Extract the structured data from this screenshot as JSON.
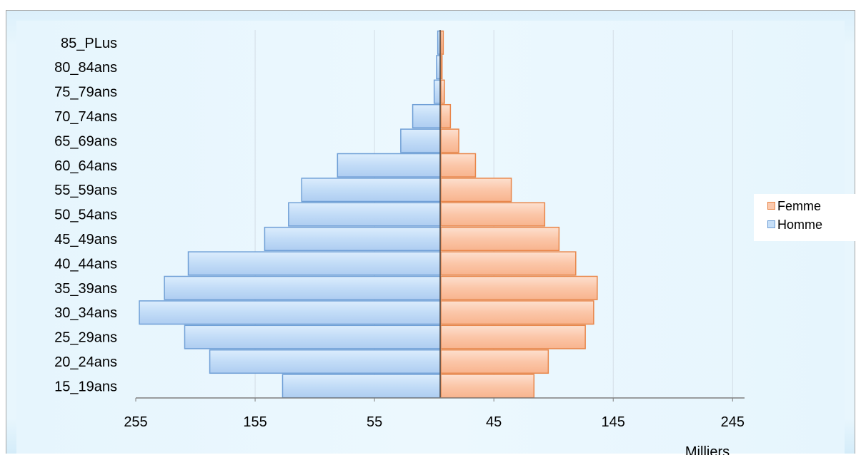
{
  "chart_data": {
    "type": "bar",
    "orientation": "horizontal",
    "categories": [
      "15_19ans",
      "20_24ans",
      "25_29ans",
      "30_34ans",
      "35_39ans",
      "40_44ans",
      "45_49ans",
      "50_54ans",
      "55_59ans",
      "60_64ans",
      "65_69ans",
      "70_74ans",
      "75_79ans",
      "80_84ans",
      "85_PLus"
    ],
    "series": [
      {
        "name": "Femme",
        "values": [
          78,
          90,
          121,
          128,
          131,
          113,
          99,
          87,
          59,
          29,
          15,
          8,
          3,
          1,
          2
        ]
      },
      {
        "name": "Homme",
        "values": [
          132,
          193,
          214,
          252,
          231,
          211,
          147,
          127,
          116,
          86,
          33,
          23,
          5,
          3,
          2
        ]
      }
    ],
    "xlim": [
      -255,
      255
    ],
    "xticks": [
      -255,
      -155,
      -55,
      45,
      145,
      245
    ],
    "xtick_labels": [
      "255",
      "155",
      "55",
      "45",
      "145",
      "245"
    ],
    "xlabel": "Milliers",
    "ylabel": "",
    "grid": true,
    "legend": "right",
    "colors": {
      "Femme": {
        "fill": "#fbc9ad",
        "stroke": "#e8864a"
      },
      "Homme": {
        "fill": "#c6dff8",
        "stroke": "#6f9fd6"
      }
    }
  }
}
